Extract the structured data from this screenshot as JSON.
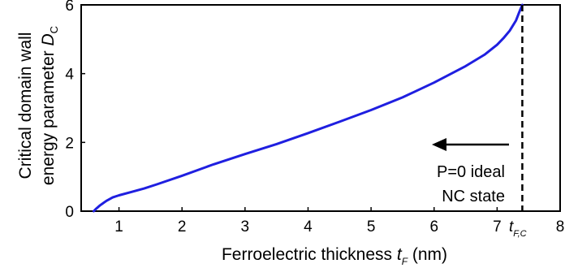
{
  "chart_data": {
    "type": "line",
    "xlabel": "Ferroelectric thickness",
    "xlabel_symbol": "t",
    "xlabel_symbol_sub": "F",
    "xlabel_unit": "(nm)",
    "ylabel_line1": "Critical domain wall",
    "ylabel_line2": "energy parameter",
    "ylabel_symbol": "D",
    "ylabel_symbol_sub": "C",
    "xlim": [
      0.4,
      8.0
    ],
    "ylim": [
      0,
      6
    ],
    "x_ticks": [
      {
        "value": 1,
        "label": "1"
      },
      {
        "value": 2,
        "label": "2"
      },
      {
        "value": 3,
        "label": "3"
      },
      {
        "value": 4,
        "label": "4"
      },
      {
        "value": 5,
        "label": "5"
      },
      {
        "value": 6,
        "label": "6"
      },
      {
        "value": 7,
        "label": "7"
      },
      {
        "value": 8,
        "label": "8"
      }
    ],
    "y_ticks": [
      {
        "value": 0,
        "label": "0"
      },
      {
        "value": 2,
        "label": "2"
      },
      {
        "value": 4,
        "label": "4"
      },
      {
        "value": 6,
        "label": "6"
      }
    ],
    "critical_marker": {
      "value": 7.4,
      "label": "t",
      "label_sub": "F,C",
      "style": "dashed"
    },
    "annotations": {
      "line1": "P=0 ideal",
      "line2": "NC state",
      "arrow": "left"
    },
    "grid": false,
    "series": [
      {
        "color": "#1f1fe0",
        "x": [
          0.6,
          0.63,
          0.7,
          0.8,
          0.9,
          1.0,
          1.2,
          1.4,
          1.6,
          2.0,
          2.5,
          3.0,
          3.5,
          4.0,
          4.5,
          5.0,
          5.5,
          6.0,
          6.5,
          6.8,
          7.0,
          7.1,
          7.2,
          7.3,
          7.35,
          7.4
        ],
        "y": [
          0.0,
          0.06,
          0.17,
          0.3,
          0.4,
          0.46,
          0.56,
          0.66,
          0.78,
          1.03,
          1.36,
          1.66,
          1.95,
          2.27,
          2.6,
          2.94,
          3.31,
          3.74,
          4.22,
          4.55,
          4.84,
          5.03,
          5.25,
          5.55,
          5.78,
          6.0
        ]
      }
    ]
  }
}
